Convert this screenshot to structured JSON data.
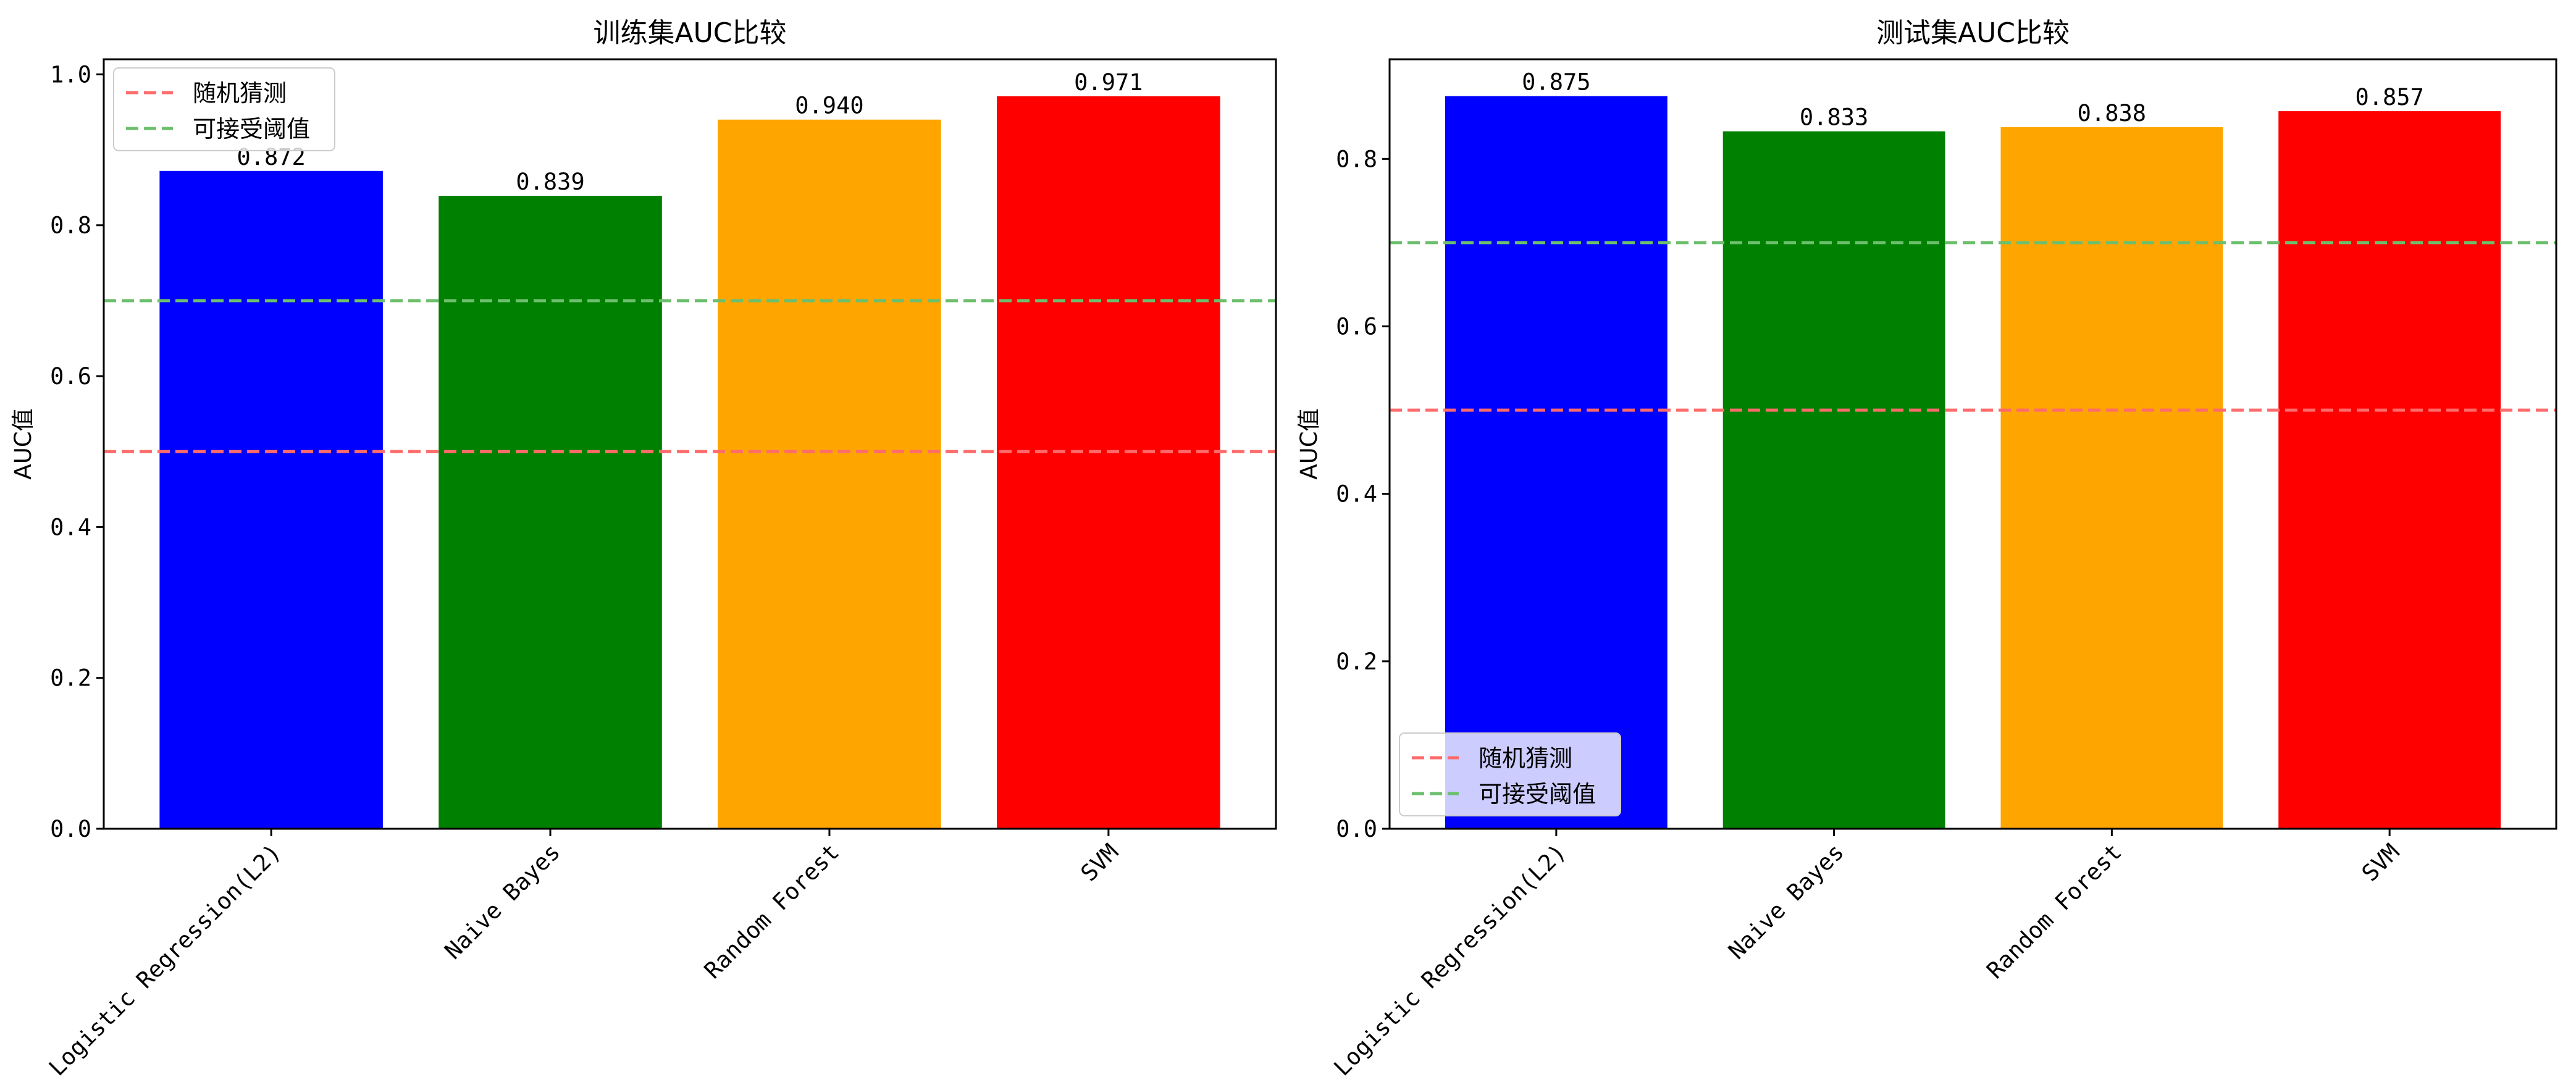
{
  "chart_data": [
    {
      "type": "bar",
      "title": "训练集AUC比较",
      "ylabel": "AUC值",
      "xlabel": "",
      "categories": [
        "Logistic Regression(L2)",
        "Naive Bayes",
        "Random Forest",
        "SVM"
      ],
      "values": [
        0.872,
        0.839,
        0.94,
        0.971
      ],
      "value_labels": [
        "0.872",
        "0.839",
        "0.940",
        "0.971"
      ],
      "colors": [
        "#0000ff",
        "#008000",
        "#ffa500",
        "#ff0000"
      ],
      "ylim": [
        0,
        1.02
      ],
      "yticks": [
        0.0,
        0.2,
        0.4,
        0.6,
        0.8,
        1.0
      ],
      "ytick_labels": [
        "0.0",
        "0.2",
        "0.4",
        "0.6",
        "0.8",
        "1.0"
      ],
      "grid": false,
      "legend_position": "upper left",
      "reference_lines": [
        {
          "name": "随机猜测",
          "y": 0.5,
          "color": "#ff6b6b",
          "style": "dashed"
        },
        {
          "name": "可接受阈值",
          "y": 0.7,
          "color": "#6cbf6c",
          "style": "dashed"
        }
      ]
    },
    {
      "type": "bar",
      "title": "测试集AUC比较",
      "ylabel": "AUC值",
      "xlabel": "",
      "categories": [
        "Logistic Regression(L2)",
        "Naive Bayes",
        "Random Forest",
        "SVM"
      ],
      "values": [
        0.875,
        0.833,
        0.838,
        0.857
      ],
      "value_labels": [
        "0.875",
        "0.833",
        "0.838",
        "0.857"
      ],
      "colors": [
        "#0000ff",
        "#008000",
        "#ffa500",
        "#ff0000"
      ],
      "ylim": [
        0,
        0.919
      ],
      "yticks": [
        0.0,
        0.2,
        0.4,
        0.6,
        0.8
      ],
      "ytick_labels": [
        "0.0",
        "0.2",
        "0.4",
        "0.6",
        "0.8"
      ],
      "grid": false,
      "legend_position": "lower left",
      "reference_lines": [
        {
          "name": "随机猜测",
          "y": 0.5,
          "color": "#ff6b6b",
          "style": "dashed"
        },
        {
          "name": "可接受阈值",
          "y": 0.7,
          "color": "#6cbf6c",
          "style": "dashed"
        }
      ]
    }
  ]
}
